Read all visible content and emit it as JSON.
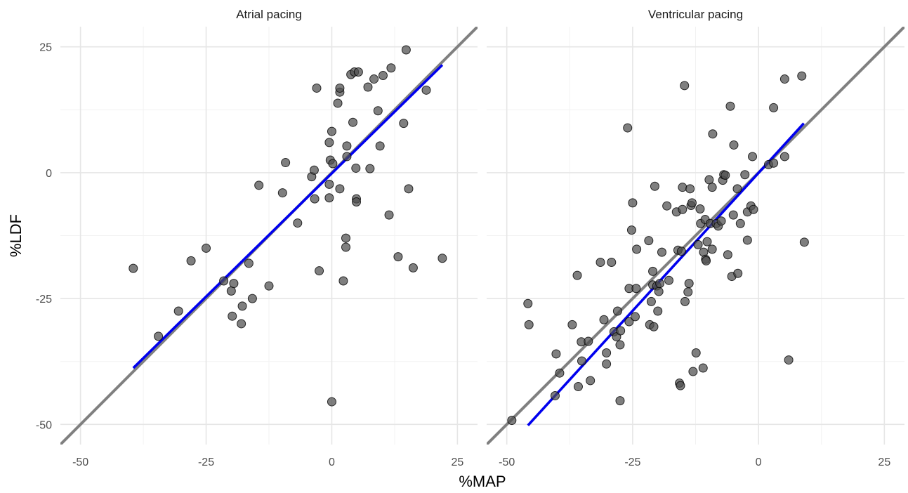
{
  "chart_data": {
    "type": "scatter",
    "xlabel": "%MAP",
    "ylabel": "%LDF",
    "xlim": [
      -54,
      29
    ],
    "ylim": [
      -54,
      29
    ],
    "x_ticks": [
      -50,
      -25,
      0,
      25
    ],
    "y_ticks": [
      -50,
      -25,
      0,
      25
    ],
    "grid": true,
    "identity_line_color": "#808080",
    "fit_line_color": "#0000ee",
    "point_color": "#4d4d4d",
    "panels": [
      {
        "title": "Atrial pacing",
        "fit": {
          "x": [
            -39.5,
            22
          ],
          "y": [
            -38.8,
            21.4
          ]
        },
        "points": [
          {
            "x": -39.5,
            "y": -19
          },
          {
            "x": -34.5,
            "y": -32.5
          },
          {
            "x": -30.5,
            "y": -27.5
          },
          {
            "x": -28.0,
            "y": -17.5
          },
          {
            "x": -25.0,
            "y": -15
          },
          {
            "x": -21.5,
            "y": -21.5
          },
          {
            "x": -20.0,
            "y": -23.5
          },
          {
            "x": -19.5,
            "y": -22
          },
          {
            "x": -19.8,
            "y": -28.5
          },
          {
            "x": -18.0,
            "y": -30
          },
          {
            "x": -17.8,
            "y": -26.5
          },
          {
            "x": -16.5,
            "y": -18
          },
          {
            "x": -15.8,
            "y": -25
          },
          {
            "x": -14.5,
            "y": -2.5
          },
          {
            "x": -12.5,
            "y": -22.5
          },
          {
            "x": -9.8,
            "y": -4
          },
          {
            "x": -9.2,
            "y": 2
          },
          {
            "x": -6.8,
            "y": -10
          },
          {
            "x": -4.0,
            "y": -0.8
          },
          {
            "x": -3.5,
            "y": 0.5
          },
          {
            "x": -3.4,
            "y": -5.2
          },
          {
            "x": -3.0,
            "y": 16.8
          },
          {
            "x": -2.5,
            "y": -19.5
          },
          {
            "x": -0.5,
            "y": -2.3
          },
          {
            "x": -0.5,
            "y": -5
          },
          {
            "x": -0.5,
            "y": 6
          },
          {
            "x": -0.3,
            "y": 2.5
          },
          {
            "x": 0.0,
            "y": 8.2
          },
          {
            "x": 0.2,
            "y": 1.8
          },
          {
            "x": 0.0,
            "y": -45.5
          },
          {
            "x": 1.2,
            "y": 13.8
          },
          {
            "x": 1.6,
            "y": 16
          },
          {
            "x": 1.6,
            "y": 16.8
          },
          {
            "x": 1.6,
            "y": -3.2
          },
          {
            "x": 2.3,
            "y": -21.5
          },
          {
            "x": 2.8,
            "y": -13
          },
          {
            "x": 2.8,
            "y": -14.8
          },
          {
            "x": 3.0,
            "y": 5.3
          },
          {
            "x": 3.0,
            "y": 3.2
          },
          {
            "x": 3.8,
            "y": 19.5
          },
          {
            "x": 4.2,
            "y": 10
          },
          {
            "x": 4.5,
            "y": 20
          },
          {
            "x": 4.8,
            "y": 0.9
          },
          {
            "x": 4.9,
            "y": -5.2
          },
          {
            "x": 4.9,
            "y": -5.8
          },
          {
            "x": 5.3,
            "y": 20
          },
          {
            "x": 7.2,
            "y": 17
          },
          {
            "x": 7.6,
            "y": 0.8
          },
          {
            "x": 8.4,
            "y": 18.6
          },
          {
            "x": 9.2,
            "y": 12.3
          },
          {
            "x": 9.6,
            "y": 5.3
          },
          {
            "x": 10.2,
            "y": 19.3
          },
          {
            "x": 11.4,
            "y": -8.4
          },
          {
            "x": 11.8,
            "y": 20.8
          },
          {
            "x": 13.2,
            "y": -16.7
          },
          {
            "x": 14.3,
            "y": 9.8
          },
          {
            "x": 14.8,
            "y": 24.4
          },
          {
            "x": 15.3,
            "y": -3.2
          },
          {
            "x": 16.2,
            "y": -18.9
          },
          {
            "x": 18.8,
            "y": 16.4
          },
          {
            "x": 22.0,
            "y": -17
          }
        ]
      },
      {
        "title": "Ventricular pacing",
        "fit": {
          "x": [
            -45.8,
            9
          ],
          "y": [
            -50.2,
            9.8
          ]
        },
        "points": [
          {
            "x": -49.0,
            "y": -49.2
          },
          {
            "x": -45.8,
            "y": -26
          },
          {
            "x": -45.6,
            "y": -30.2
          },
          {
            "x": -40.2,
            "y": -36
          },
          {
            "x": -40.4,
            "y": -44.3
          },
          {
            "x": -39.5,
            "y": -39.8
          },
          {
            "x": -37.0,
            "y": -30.2
          },
          {
            "x": -36.0,
            "y": -20.4
          },
          {
            "x": -35.8,
            "y": -42.5
          },
          {
            "x": -35.2,
            "y": -33.6
          },
          {
            "x": -35.1,
            "y": -37.4
          },
          {
            "x": -33.8,
            "y": -33.5
          },
          {
            "x": -33.4,
            "y": -41.3
          },
          {
            "x": -31.4,
            "y": -17.8
          },
          {
            "x": -30.7,
            "y": -29.2
          },
          {
            "x": -30.2,
            "y": -35.8
          },
          {
            "x": -30.2,
            "y": -38
          },
          {
            "x": -29.2,
            "y": -17.8
          },
          {
            "x": -28.7,
            "y": -31.6
          },
          {
            "x": -28.2,
            "y": -32.6
          },
          {
            "x": -28.0,
            "y": -27.5
          },
          {
            "x": -27.5,
            "y": -34.2
          },
          {
            "x": -27.5,
            "y": -45.3
          },
          {
            "x": -27.4,
            "y": -31.4
          },
          {
            "x": -26.0,
            "y": 8.9
          },
          {
            "x": -25.7,
            "y": -23
          },
          {
            "x": -25.7,
            "y": -29.6
          },
          {
            "x": -25.2,
            "y": -11.4
          },
          {
            "x": -25.0,
            "y": -6
          },
          {
            "x": -24.5,
            "y": -28.6
          },
          {
            "x": -24.3,
            "y": -23
          },
          {
            "x": -24.2,
            "y": -15.2
          },
          {
            "x": -21.8,
            "y": -13.5
          },
          {
            "x": -21.6,
            "y": -30.2
          },
          {
            "x": -21.3,
            "y": -25.6
          },
          {
            "x": -21.0,
            "y": -22.3
          },
          {
            "x": -21.0,
            "y": -19.6
          },
          {
            "x": -20.8,
            "y": -30.6
          },
          {
            "x": -20.6,
            "y": -2.7
          },
          {
            "x": -20.2,
            "y": -22.5
          },
          {
            "x": -20.0,
            "y": -27.5
          },
          {
            "x": -19.8,
            "y": -23.6
          },
          {
            "x": -19.6,
            "y": -22
          },
          {
            "x": -19.2,
            "y": -15.8
          },
          {
            "x": -18.2,
            "y": -6.6
          },
          {
            "x": -17.8,
            "y": -21.4
          },
          {
            "x": -16.3,
            "y": -7.8
          },
          {
            "x": -16.0,
            "y": -15.4
          },
          {
            "x": -15.7,
            "y": -41.8
          },
          {
            "x": -15.5,
            "y": -42.3
          },
          {
            "x": -15.3,
            "y": -15.6
          },
          {
            "x": -15.1,
            "y": -7.3
          },
          {
            "x": -15.1,
            "y": -2.9
          },
          {
            "x": -14.7,
            "y": 17.3
          },
          {
            "x": -14.6,
            "y": -25.6
          },
          {
            "x": -14.0,
            "y": -23.7
          },
          {
            "x": -13.8,
            "y": -22
          },
          {
            "x": -13.6,
            "y": -3.2
          },
          {
            "x": -13.4,
            "y": -6.5
          },
          {
            "x": -13.2,
            "y": -6
          },
          {
            "x": -13.0,
            "y": -39.5
          },
          {
            "x": -12.4,
            "y": -35.8
          },
          {
            "x": -12.0,
            "y": -14.3
          },
          {
            "x": -11.6,
            "y": -7.2
          },
          {
            "x": -11.5,
            "y": -10.1
          },
          {
            "x": -11.0,
            "y": -38.8
          },
          {
            "x": -10.9,
            "y": -15.8
          },
          {
            "x": -10.6,
            "y": -9.3
          },
          {
            "x": -10.5,
            "y": -17.2
          },
          {
            "x": -10.4,
            "y": -17.5
          },
          {
            "x": -10.2,
            "y": -13.7
          },
          {
            "x": -9.8,
            "y": -1.4
          },
          {
            "x": -9.6,
            "y": -10.1
          },
          {
            "x": -9.2,
            "y": -15.2
          },
          {
            "x": -9.2,
            "y": -2.9
          },
          {
            "x": -9.1,
            "y": 7.7
          },
          {
            "x": -8.4,
            "y": -10.1
          },
          {
            "x": -8.0,
            "y": -10.6
          },
          {
            "x": -7.4,
            "y": -9.6
          },
          {
            "x": -7.1,
            "y": -1.5
          },
          {
            "x": -6.9,
            "y": -0.4
          },
          {
            "x": -6.6,
            "y": -0.5
          },
          {
            "x": -6.1,
            "y": -16.3
          },
          {
            "x": -5.6,
            "y": 13.2
          },
          {
            "x": -5.3,
            "y": -20.6
          },
          {
            "x": -5.0,
            "y": -8.4
          },
          {
            "x": -4.9,
            "y": 5.5
          },
          {
            "x": -4.2,
            "y": -3.2
          },
          {
            "x": -4.1,
            "y": -20
          },
          {
            "x": -3.6,
            "y": -10.1
          },
          {
            "x": -2.7,
            "y": -0.4
          },
          {
            "x": -2.2,
            "y": -7.8
          },
          {
            "x": -2.2,
            "y": -13.4
          },
          {
            "x": -1.5,
            "y": -6.6
          },
          {
            "x": -1.2,
            "y": 3.2
          },
          {
            "x": -1.0,
            "y": -7.3
          },
          {
            "x": 2.0,
            "y": 1.6
          },
          {
            "x": 3.0,
            "y": 12.9
          },
          {
            "x": 3.0,
            "y": 1.9
          },
          {
            "x": 5.2,
            "y": 3.2
          },
          {
            "x": 5.2,
            "y": 18.6
          },
          {
            "x": 6.0,
            "y": -37.2
          },
          {
            "x": 8.6,
            "y": 19.2
          },
          {
            "x": 9.1,
            "y": -13.8
          }
        ]
      }
    ]
  }
}
